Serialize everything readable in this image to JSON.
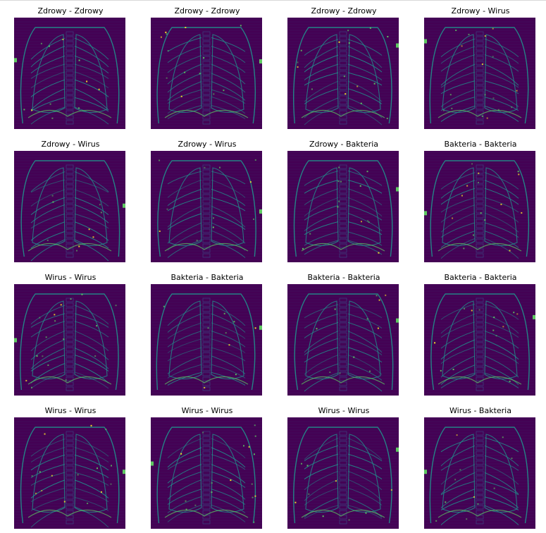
{
  "figure": {
    "panels": [
      {
        "title": "Zdrowy - Zdrowy"
      },
      {
        "title": "Zdrowy - Zdrowy"
      },
      {
        "title": "Zdrowy - Zdrowy"
      },
      {
        "title": "Zdrowy - Wirus"
      },
      {
        "title": "Zdrowy - Wirus"
      },
      {
        "title": "Zdrowy - Wirus"
      },
      {
        "title": "Zdrowy - Bakteria"
      },
      {
        "title": "Bakteria - Bakteria"
      },
      {
        "title": "Wirus - Wirus"
      },
      {
        "title": "Bakteria - Bakteria"
      },
      {
        "title": "Bakteria - Bakteria"
      },
      {
        "title": "Bakteria - Bakteria"
      },
      {
        "title": "Wirus - Wirus"
      },
      {
        "title": "Wirus - Wirus"
      },
      {
        "title": "Wirus - Wirus"
      },
      {
        "title": "Wirus - Bakteria"
      }
    ],
    "colors": {
      "background": "#440154",
      "mid": "#3b528b",
      "teal": "#21918c",
      "green": "#5ec962",
      "yellow": "#fde725"
    }
  }
}
